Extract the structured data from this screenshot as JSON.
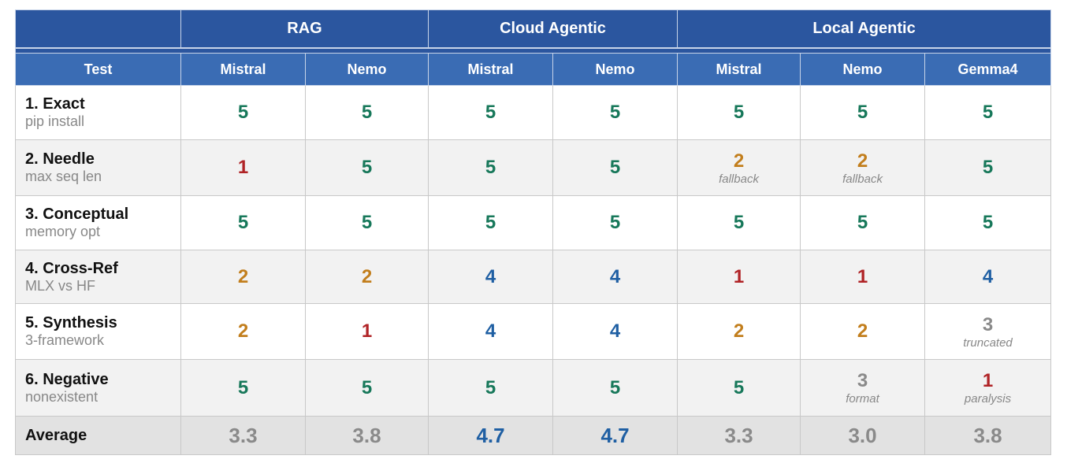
{
  "table": {
    "corner": "Test",
    "groups": [
      {
        "label": "RAG",
        "columns": [
          "Mistral",
          "Nemo"
        ]
      },
      {
        "label": "Cloud Agentic",
        "columns": [
          "Mistral",
          "Nemo"
        ]
      },
      {
        "label": "Local Agentic",
        "columns": [
          "Mistral",
          "Nemo",
          "Gemma4"
        ]
      }
    ],
    "score_colors": {
      "5": "#17785a",
      "4": "#1f5fa3",
      "3": "#8a8a8a",
      "2": "#c27e1c",
      "1": "#b02326"
    },
    "rows": [
      {
        "test": "1. Exact",
        "detail": "pip install",
        "scores": [
          {
            "score": "5"
          },
          {
            "score": "5"
          },
          {
            "score": "5"
          },
          {
            "score": "5"
          },
          {
            "score": "5"
          },
          {
            "score": "5"
          },
          {
            "score": "5"
          }
        ]
      },
      {
        "test": "2. Needle",
        "detail": "max seq len",
        "scores": [
          {
            "score": "1"
          },
          {
            "score": "5"
          },
          {
            "score": "5"
          },
          {
            "score": "5"
          },
          {
            "score": "2",
            "note": "fallback"
          },
          {
            "score": "2",
            "note": "fallback"
          },
          {
            "score": "5"
          }
        ]
      },
      {
        "test": "3. Conceptual",
        "detail": "memory opt",
        "scores": [
          {
            "score": "5"
          },
          {
            "score": "5"
          },
          {
            "score": "5"
          },
          {
            "score": "5"
          },
          {
            "score": "5"
          },
          {
            "score": "5"
          },
          {
            "score": "5"
          }
        ]
      },
      {
        "test": "4. Cross-Ref",
        "detail": "MLX vs HF",
        "scores": [
          {
            "score": "2"
          },
          {
            "score": "2"
          },
          {
            "score": "4"
          },
          {
            "score": "4"
          },
          {
            "score": "1"
          },
          {
            "score": "1"
          },
          {
            "score": "4"
          }
        ]
      },
      {
        "test": "5. Synthesis",
        "detail": "3-framework",
        "scores": [
          {
            "score": "2"
          },
          {
            "score": "1"
          },
          {
            "score": "4"
          },
          {
            "score": "4"
          },
          {
            "score": "2"
          },
          {
            "score": "2"
          },
          {
            "score": "3",
            "note": "truncated"
          }
        ]
      },
      {
        "test": "6. Negative",
        "detail": "nonexistent",
        "scores": [
          {
            "score": "5"
          },
          {
            "score": "5"
          },
          {
            "score": "5"
          },
          {
            "score": "5"
          },
          {
            "score": "5"
          },
          {
            "score": "3",
            "note": "format"
          },
          {
            "score": "1",
            "note": "paralysis"
          }
        ]
      }
    ],
    "average": {
      "label": "Average",
      "values": [
        {
          "value": "3.3",
          "color": "#8a8a8a"
        },
        {
          "value": "3.8",
          "color": "#8a8a8a"
        },
        {
          "value": "4.7",
          "color": "#1f5fa3"
        },
        {
          "value": "4.7",
          "color": "#1f5fa3"
        },
        {
          "value": "3.3",
          "color": "#8a8a8a"
        },
        {
          "value": "3.0",
          "color": "#8a8a8a"
        },
        {
          "value": "3.8",
          "color": "#8a8a8a"
        }
      ]
    }
  }
}
